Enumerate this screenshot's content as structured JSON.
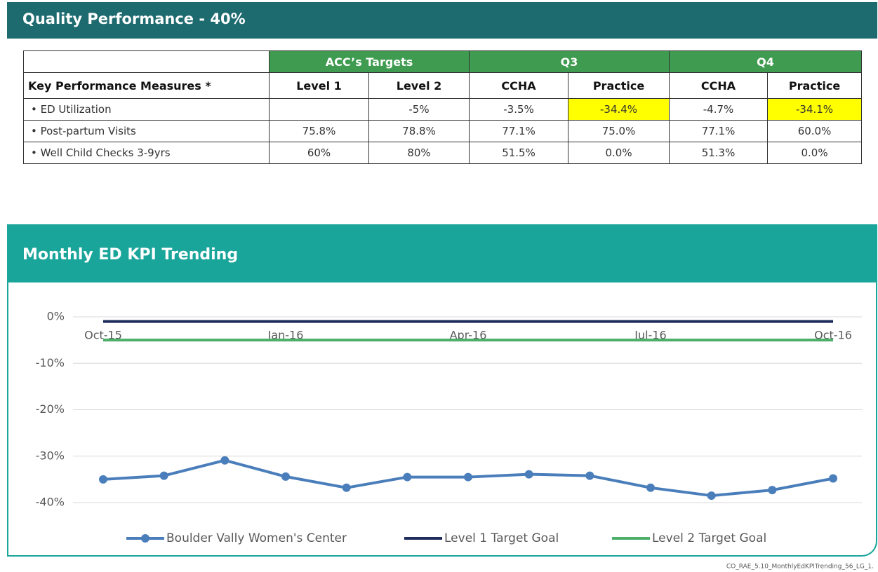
{
  "header": {
    "title": "Quality Performance - 40%"
  },
  "table": {
    "groups": [
      "ACC’s Targets",
      "Q3",
      "Q4"
    ],
    "columns": [
      "Key Performance Measures *",
      "Level 1",
      "Level 2",
      "CCHA",
      "Practice",
      "CCHA",
      "Practice"
    ],
    "rows": [
      [
        "• ED Utilization",
        null,
        "-5%",
        "-3.5%",
        "-34.4%",
        "-4.7%",
        "-34.1%"
      ],
      [
        "• Post-partum Visits",
        "75.8%",
        "78.8%",
        "77.1%",
        "75.0%",
        "77.1%",
        "60.0%"
      ],
      [
        "• Well Child Checks 3-9yrs",
        "60%",
        "80%",
        "51.5%",
        "0.0%",
        "51.3%",
        "0.0%"
      ]
    ]
  },
  "chart_data": {
    "type": "line",
    "title": "Monthly ED KPI Trending",
    "categories": [
      "Oct-15",
      null,
      null,
      "Jan-16",
      null,
      null,
      "Apr-16",
      null,
      null,
      "Jul-16",
      null,
      null,
      "Oct-16"
    ],
    "series": [
      {
        "name": "Boulder Vally Women's Center",
        "color": "#4a7ebb",
        "marker": true,
        "values": [
          -35,
          -34.2,
          -30.9,
          -34.4,
          -36.8,
          -34.5,
          -34.5,
          -33.9,
          -34.2,
          -36.8,
          -38.5,
          -37.3,
          -34.8
        ]
      },
      {
        "name": "Level 1 Target Goal",
        "color": "#1f2d5c",
        "marker": false,
        "values": [
          -1,
          -1,
          -1,
          -1,
          -1,
          -1,
          -1,
          -1,
          -1,
          -1,
          -1,
          -1,
          -1
        ]
      },
      {
        "name": "Level 2 Target Goal",
        "color": "#4caf6a",
        "marker": false,
        "values": [
          -5,
          -5,
          -5,
          -5,
          -5,
          -5,
          -5,
          -5,
          -5,
          -5,
          -5,
          -5,
          -5
        ]
      }
    ],
    "ylim": [
      -40,
      0
    ],
    "yticks": [
      {
        "value": 0,
        "label": "0%"
      },
      {
        "value": -10,
        "label": "-10%"
      },
      {
        "value": -20,
        "label": "-20%"
      },
      {
        "value": -30,
        "label": "-30%"
      },
      {
        "value": -40,
        "label": "-40%"
      }
    ],
    "grid": true,
    "legend": "bottom"
  },
  "footer": {
    "text": "CO_RAE_5.10_MonthlyEdKPITrending_56_LG_1."
  }
}
